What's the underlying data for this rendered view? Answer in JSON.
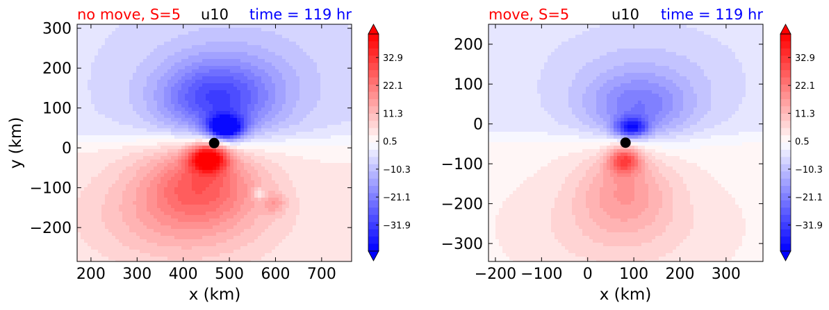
{
  "chart_data": [
    {
      "type": "heatmap",
      "variable": "u10",
      "title_left": "no move, S=5",
      "title_center": "u10",
      "title_right": "time = 119 hr",
      "title_colors": {
        "left": "#ff0000",
        "center": "#000000",
        "right": "#0000ff"
      },
      "xlabel": "x (km)",
      "ylabel": "y (km)",
      "xlim": [
        170,
        765
      ],
      "ylim": [
        -285,
        310
      ],
      "xticks": [
        200,
        300,
        400,
        500,
        600,
        700
      ],
      "xtick_labels": [
        "200",
        "300",
        "400",
        "500",
        "600",
        "700"
      ],
      "yticks": [
        -200,
        -100,
        0,
        100,
        200,
        300
      ],
      "ytick_labels": [
        "−200",
        "−100",
        "0",
        "100",
        "200",
        "300"
      ],
      "center_marker": {
        "x": 467,
        "y": 12
      },
      "field_features": [
        {
          "x": 492,
          "y": 50,
          "value": -42,
          "sx": 38,
          "sy": 30
        },
        {
          "x": 470,
          "y": 120,
          "value": -20,
          "sx": 120,
          "sy": 90
        },
        {
          "x": 510,
          "y": 170,
          "value": -8,
          "sx": 190,
          "sy": 140
        },
        {
          "x": 455,
          "y": -25,
          "value": 38,
          "sx": 40,
          "sy": 34
        },
        {
          "x": 440,
          "y": -80,
          "value": 18,
          "sx": 120,
          "sy": 95
        },
        {
          "x": 400,
          "y": -170,
          "value": 12,
          "sx": 190,
          "sy": 120
        },
        {
          "x": 598,
          "y": -140,
          "value": 8,
          "sx": 25,
          "sy": 25
        },
        {
          "x": 565,
          "y": -115,
          "value": -10,
          "sx": 14,
          "sy": 14
        }
      ],
      "field_background": {
        "north": -5,
        "south": 3,
        "transition_y": 20
      }
    },
    {
      "type": "heatmap",
      "variable": "u10",
      "title_left": "move, S=5",
      "title_center": "u10",
      "title_right": "time = 119 hr",
      "title_colors": {
        "left": "#ff0000",
        "center": "#000000",
        "right": "#0000ff"
      },
      "xlabel": "x (km)",
      "ylabel": "",
      "xlim": [
        -215,
        380
      ],
      "ylim": [
        -345,
        250
      ],
      "xticks": [
        -200,
        -100,
        0,
        100,
        200,
        300
      ],
      "xtick_labels": [
        "−200",
        "−100",
        "0",
        "100",
        "200",
        "300"
      ],
      "yticks": [
        -300,
        -200,
        -100,
        0,
        100,
        200
      ],
      "ytick_labels": [
        "−300",
        "−200",
        "−100",
        "0",
        "100",
        "200"
      ],
      "center_marker": {
        "x": 82,
        "y": -47
      },
      "field_features": [
        {
          "x": 95,
          "y": -10,
          "value": -28,
          "sx": 35,
          "sy": 25
        },
        {
          "x": 110,
          "y": 40,
          "value": -14,
          "sx": 110,
          "sy": 80
        },
        {
          "x": 120,
          "y": 110,
          "value": -6,
          "sx": 190,
          "sy": 130
        },
        {
          "x": 80,
          "y": -90,
          "value": 24,
          "sx": 35,
          "sy": 35
        },
        {
          "x": 80,
          "y": -160,
          "value": 12,
          "sx": 100,
          "sy": 100
        },
        {
          "x": 70,
          "y": -260,
          "value": 6,
          "sx": 190,
          "sy": 120
        }
      ],
      "field_background": {
        "north": -4,
        "south": 2,
        "transition_y": -35
      }
    }
  ],
  "colorbar": {
    "vmin": -42,
    "vmax": 42,
    "ticks": [
      32.9,
      22.1,
      11.3,
      0.5,
      -10.3,
      -21.1,
      -31.9
    ],
    "tick_labels": [
      "32.9",
      "22.1",
      "11.3",
      "0.5",
      "−10.3",
      "−21.1",
      "−31.9"
    ],
    "extend": "both",
    "colormap": "bwr",
    "levels": 30
  }
}
